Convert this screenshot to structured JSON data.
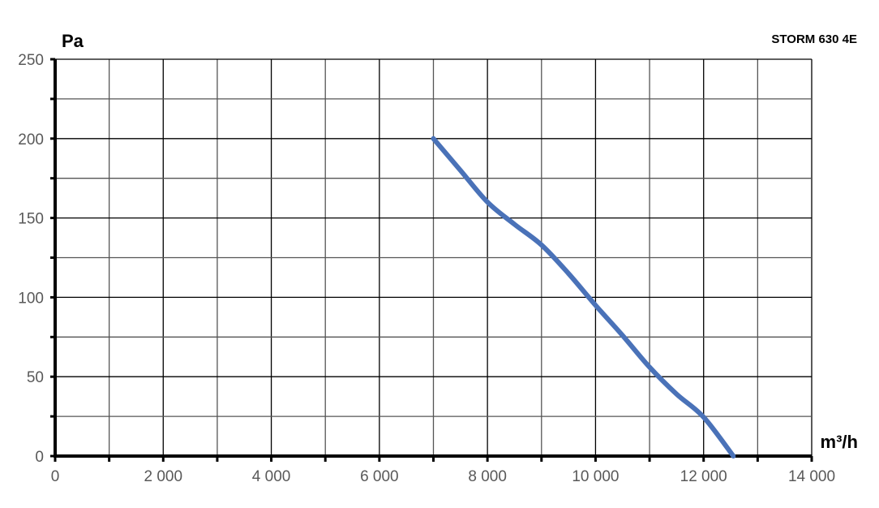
{
  "chart_data": {
    "type": "line",
    "title": "STORM 630 4E",
    "xlabel": "m³/h",
    "ylabel": "Pa",
    "xlim": [
      0,
      14000
    ],
    "ylim": [
      0,
      250
    ],
    "x_ticks": [
      0,
      2000,
      4000,
      6000,
      8000,
      10000,
      12000,
      14000
    ],
    "x_tick_labels": [
      "0",
      "2 000",
      "4 000",
      "6 000",
      "8 000",
      "10 000",
      "12 000",
      "14 000"
    ],
    "y_ticks": [
      0,
      50,
      100,
      150,
      200,
      250
    ],
    "y_tick_labels": [
      "0",
      "50",
      "100",
      "150",
      "200",
      "250"
    ],
    "x_grid_step": 1000,
    "y_grid_step": 25,
    "grid": true,
    "legend": "none",
    "series": [
      {
        "color": "#4a72b8",
        "x": [
          7000,
          7500,
          8000,
          8500,
          9000,
          9500,
          10000,
          10500,
          11000,
          11500,
          12000,
          12550
        ],
        "y": [
          200,
          180,
          160,
          146,
          133,
          115,
          95,
          76,
          56,
          39,
          24.5,
          0
        ]
      }
    ]
  }
}
